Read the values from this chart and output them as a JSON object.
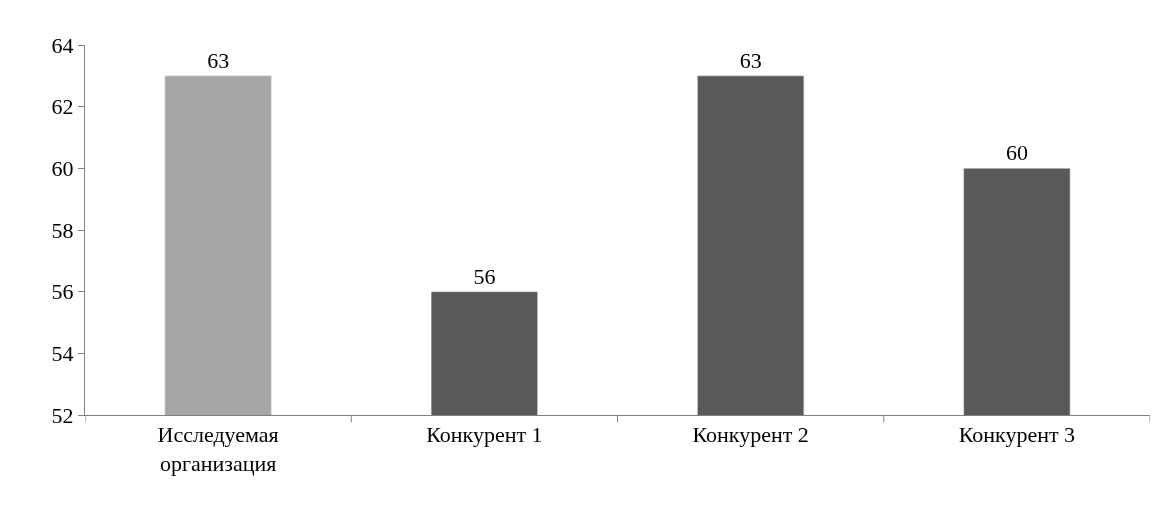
{
  "chart_data": {
    "type": "bar",
    "categories": [
      "Исследуемая организация",
      "Конкурент 1",
      "Конкурент 2",
      "Конкурент 3"
    ],
    "values": [
      63,
      56,
      63,
      60
    ],
    "colors": [
      "#a6a6a6",
      "#595959",
      "#595959",
      "#595959"
    ],
    "ylim": [
      52,
      64
    ],
    "yticks": [
      52,
      54,
      56,
      58,
      60,
      62,
      64
    ],
    "data_labels": true
  }
}
